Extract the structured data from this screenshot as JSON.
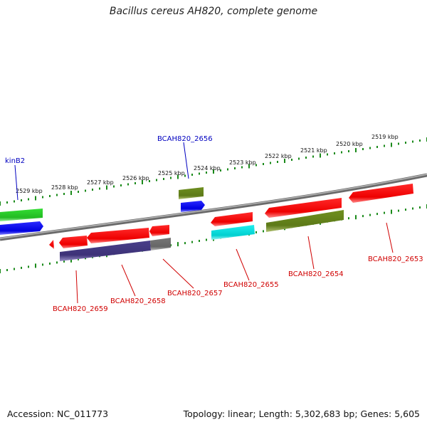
{
  "title": "Bacillus cereus AH820, complete genome",
  "footer": {
    "accession": "Accession: NC_011773",
    "summary": "Topology: linear; Length: 5,302,683 bp; Genes: 5,605"
  },
  "colors": {
    "forward_label": "#0000c0",
    "reverse_label": "#d00000",
    "backbone": "#808080",
    "tick": "#1a8a1a"
  },
  "scale_ticks": [
    "2529 kbp",
    "2528 kbp",
    "2527 kbp",
    "2526 kbp",
    "2525 kbp",
    "2524 kbp",
    "2523 kbp",
    "2522 kbp",
    "2521 kbp",
    "2520 kbp",
    "2519 kbp"
  ],
  "gene_labels": {
    "kinB2": "kinB2",
    "BCAH820_2656": "BCAH820_2656",
    "BCAH820_2653": "BCAH820_2653",
    "BCAH820_2654": "BCAH820_2654",
    "BCAH820_2655": "BCAH820_2655",
    "BCAH820_2657": "BCAH820_2657",
    "BCAH820_2658": "BCAH820_2658",
    "BCAH820_2659": "BCAH820_2659"
  }
}
